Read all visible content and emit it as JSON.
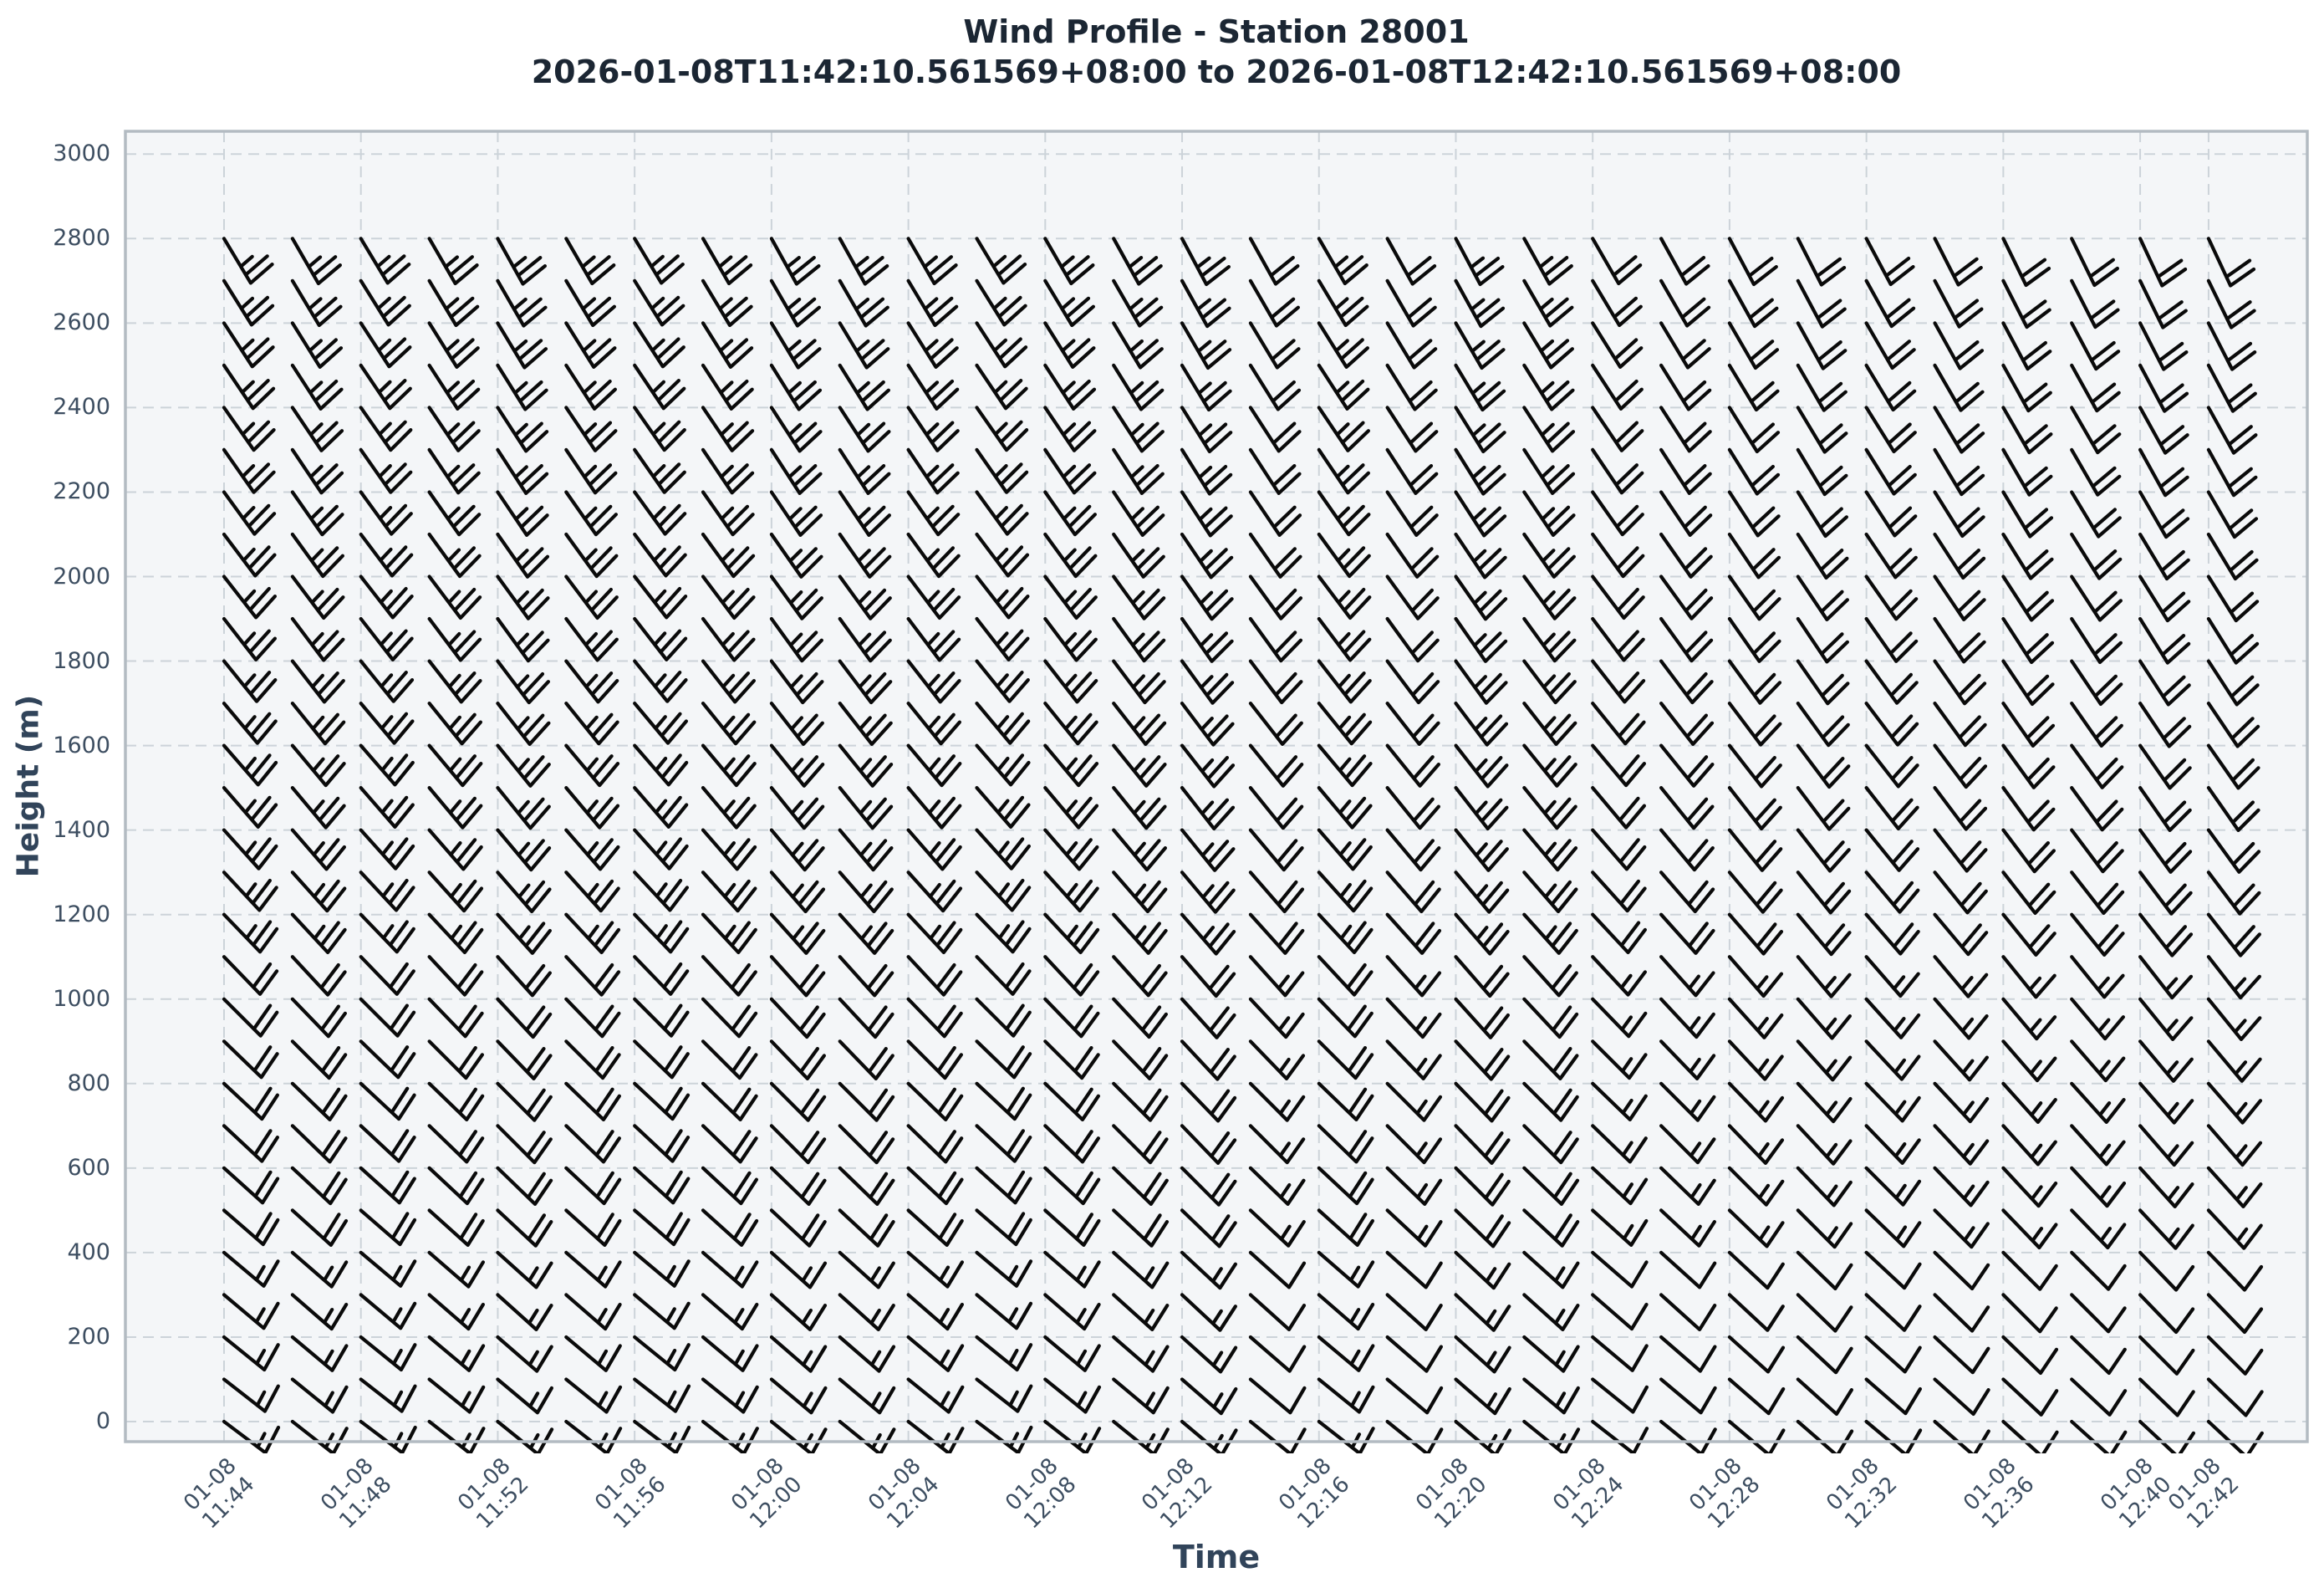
{
  "title": {
    "line1": "Wind Profile - Station 28001",
    "line2": "2026-01-08T11:42:10.561569+08:00 to 2026-01-08T12:42:10.561569+08:00"
  },
  "axes": {
    "x": {
      "label": "Time"
    },
    "y": {
      "label": "Height (m)"
    }
  },
  "colors": {
    "plot_background": "#f4f6f8",
    "gridline": "#ccd3d9",
    "spine": "#b3bbc2",
    "barb": "#0a0a0a",
    "tick_text": "#3d4e61",
    "label_text": "#31445a",
    "title_text": "#1b2633"
  },
  "chart_data": {
    "type": "wind_barb_profile",
    "station": "28001",
    "title": "Wind Profile - Station 28001",
    "subtitle": "2026-01-08T11:42:10.561569+08:00 to 2026-01-08T12:42:10.561569+08:00",
    "xlabel": "Time",
    "ylabel": "Height (m)",
    "grid": true,
    "y_ticks_m": [
      0,
      200,
      400,
      600,
      800,
      1000,
      1200,
      1400,
      1600,
      1800,
      2000,
      2200,
      2400,
      2600,
      2800,
      3000
    ],
    "x_ticks": [
      {
        "date": "01-08",
        "time": "11:44"
      },
      {
        "date": "01-08",
        "time": "11:48"
      },
      {
        "date": "01-08",
        "time": "11:52"
      },
      {
        "date": "01-08",
        "time": "11:56"
      },
      {
        "date": "01-08",
        "time": "12:00"
      },
      {
        "date": "01-08",
        "time": "12:04"
      },
      {
        "date": "01-08",
        "time": "12:08"
      },
      {
        "date": "01-08",
        "time": "12:12"
      },
      {
        "date": "01-08",
        "time": "12:16"
      },
      {
        "date": "01-08",
        "time": "12:20"
      },
      {
        "date": "01-08",
        "time": "12:24"
      },
      {
        "date": "01-08",
        "time": "12:28"
      },
      {
        "date": "01-08",
        "time": "12:32"
      },
      {
        "date": "01-08",
        "time": "12:36"
      },
      {
        "date": "01-08",
        "time": "12:40"
      },
      {
        "date": "01-08",
        "time": "12:42"
      }
    ],
    "heights_m": [
      0,
      100,
      200,
      300,
      400,
      500,
      600,
      700,
      800,
      900,
      1000,
      1100,
      1200,
      1300,
      1400,
      1500,
      1600,
      1700,
      1800,
      1900,
      2000,
      2100,
      2200,
      2300,
      2400,
      2500,
      2600,
      2700,
      2800
    ],
    "times": [
      "11:44",
      "11:46",
      "11:48",
      "11:50",
      "11:52",
      "11:54",
      "11:56",
      "11:58",
      "12:00",
      "12:02",
      "12:04",
      "12:06",
      "12:08",
      "12:10",
      "12:12",
      "12:14",
      "12:16",
      "12:18",
      "12:20",
      "12:22",
      "12:24",
      "12:26",
      "12:28",
      "12:30",
      "12:32",
      "12:34",
      "12:36",
      "12:38",
      "12:40",
      "12:42"
    ],
    "barb_convention": {
      "half_feather_kt": 5,
      "full_feather_kt": 10,
      "flag_kt": 50
    },
    "wind_estimates": {
      "note": "speed_kt[row][col] = speed_kt_by_row[row] + speed_kt_delta_by_col[col]; dir_deg[row][col] = dir_deg_by_row[row] + dir_deg_delta_by_col[col]; direction is meteorological (wind from), rows follow heights_m, cols follow times",
      "speed_kt_by_row": [
        15,
        15,
        15,
        15,
        15,
        20,
        20,
        20,
        20,
        20,
        20,
        20,
        25,
        25,
        25,
        25,
        25,
        25,
        25,
        25,
        25,
        25,
        25,
        25,
        25,
        25,
        25,
        25,
        25
      ],
      "dir_deg_by_row": [
        128,
        129,
        130,
        131,
        131,
        132,
        133,
        134,
        134,
        135,
        136,
        137,
        137,
        138,
        139,
        140,
        140,
        141,
        142,
        143,
        143,
        144,
        145,
        146,
        146,
        147,
        148,
        149,
        150
      ],
      "speed_kt_delta_by_col": [
        0,
        0,
        0,
        0,
        0,
        0,
        0,
        0,
        0,
        0,
        0,
        0,
        0,
        0,
        0,
        -5,
        0,
        -5,
        0,
        0,
        -5,
        -5,
        -5,
        -5,
        -5,
        -5,
        -5,
        -5,
        -5,
        -5
      ],
      "dir_deg_delta_by_col": [
        -1,
        0,
        -1,
        0,
        1,
        0,
        -1,
        0,
        1,
        1,
        0,
        -1,
        0,
        1,
        2,
        1,
        0,
        1,
        2,
        1,
        0,
        1,
        2,
        3,
        2,
        3,
        4,
        4,
        5,
        5
      ]
    }
  }
}
